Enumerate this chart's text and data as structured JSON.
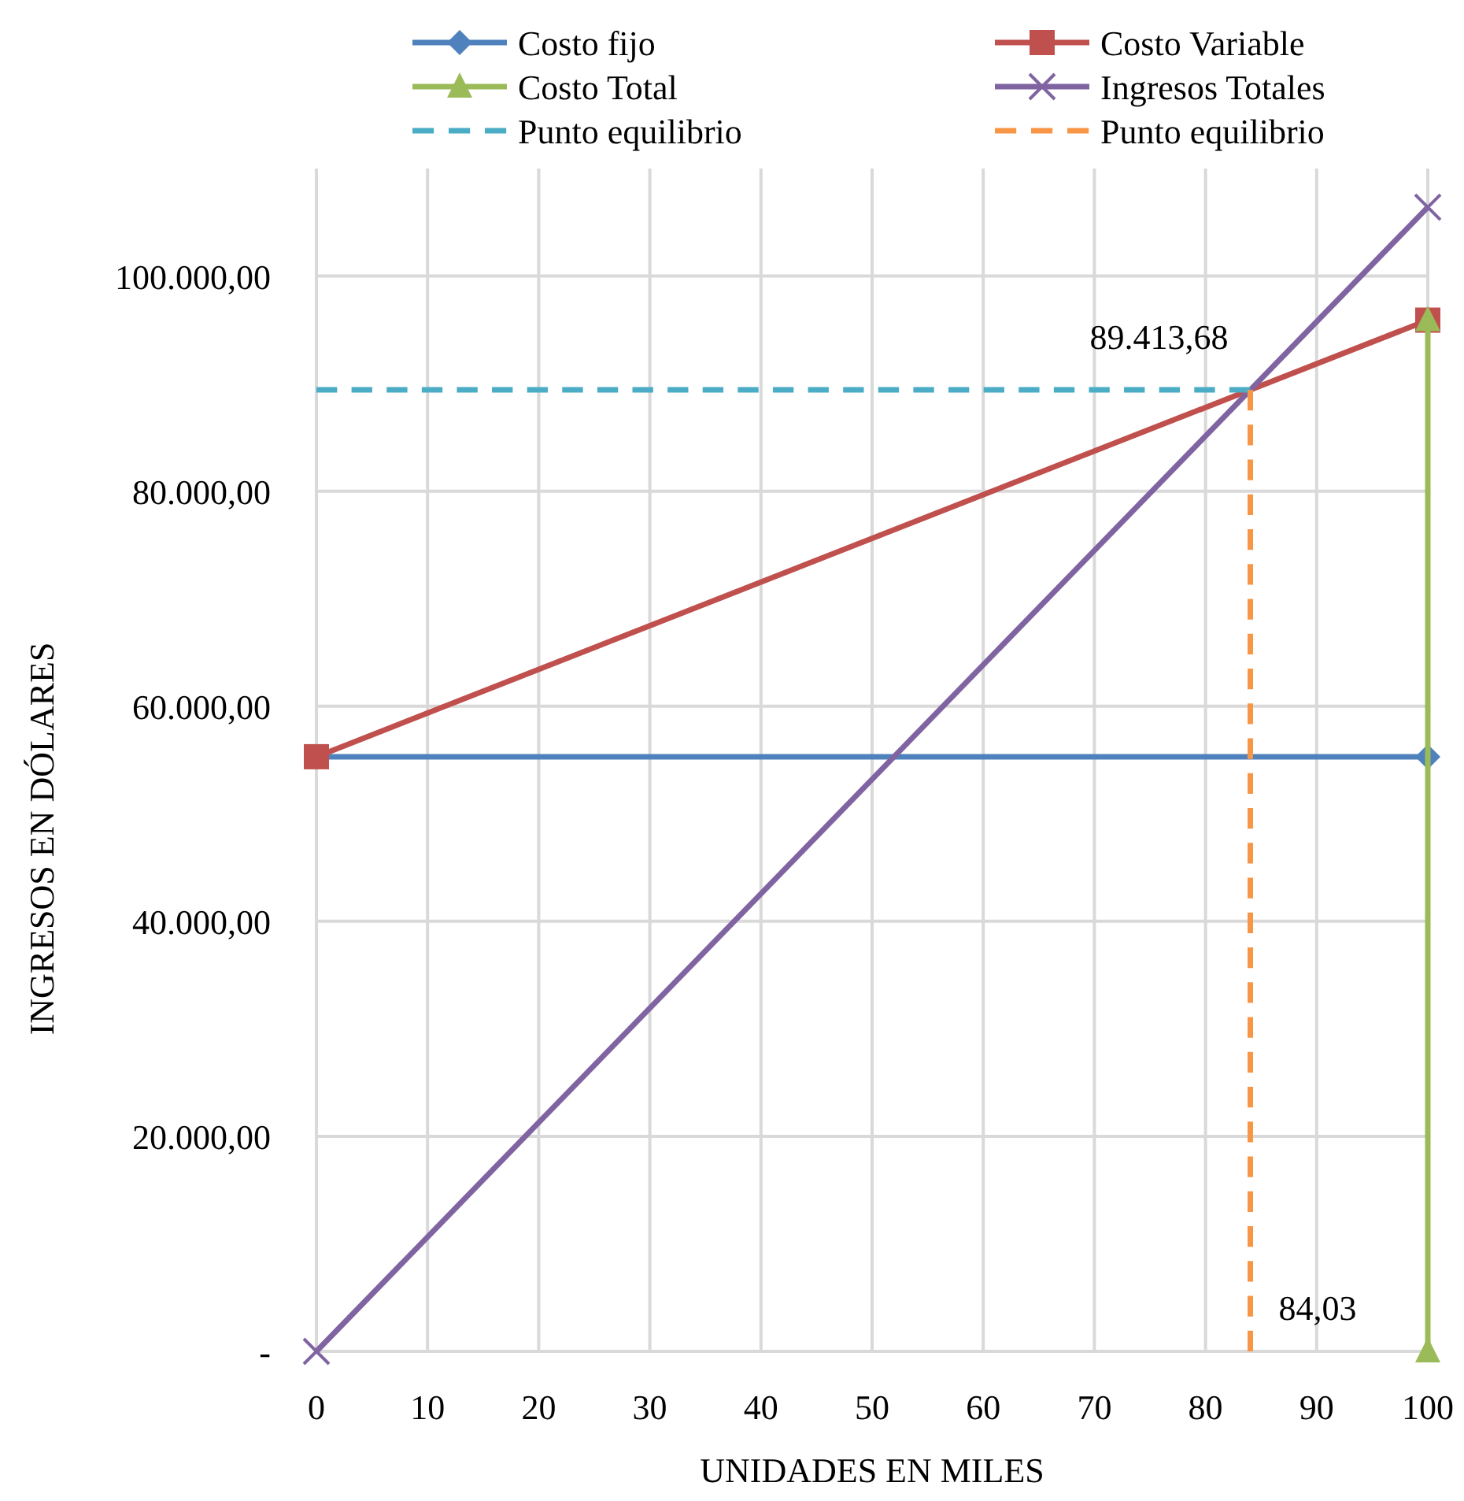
{
  "chart_data": {
    "type": "line",
    "xlabel": "UNIDADES EN MILES",
    "ylabel": "INGRESOS EN DÓLARES",
    "xlim": [
      0,
      100
    ],
    "xticks": [
      0,
      10,
      20,
      30,
      40,
      50,
      60,
      70,
      80,
      90,
      100
    ],
    "ylim": [
      0,
      110000
    ],
    "yticks": [
      {
        "value": 0,
        "label": "-"
      },
      {
        "value": 20000,
        "label": "20.000,00"
      },
      {
        "value": 40000,
        "label": "40.000,00"
      },
      {
        "value": 60000,
        "label": "60.000,00"
      },
      {
        "value": 80000,
        "label": "80.000,00"
      },
      {
        "value": 100000,
        "label": "100.000,00"
      }
    ],
    "grid": true,
    "legend": "top",
    "series": [
      {
        "name": "Costo fijo",
        "color": "#4f81bd",
        "x": [
          0,
          100
        ],
        "values": [
          55300,
          55300
        ],
        "marker": "diamond",
        "line_style": "solid"
      },
      {
        "name": "Costo Variable",
        "color": "#c0504d",
        "x": [
          0,
          100
        ],
        "values": [
          55300,
          95900
        ],
        "marker": "square",
        "line_style": "solid"
      },
      {
        "name": "Costo Total",
        "color": "#9bbb59",
        "x": [
          100,
          100
        ],
        "values": [
          0,
          95900
        ],
        "marker": "triangle",
        "line_style": "solid"
      },
      {
        "name": "Ingresos Totales",
        "color": "#8064a2",
        "x": [
          0,
          100
        ],
        "values": [
          0,
          106400
        ],
        "marker": "cross",
        "line_style": "solid"
      },
      {
        "name": "Punto equilibrio",
        "color": "#4bacc6",
        "x": [
          0,
          84.03
        ],
        "values": [
          89413.68,
          89413.68
        ],
        "marker": "none",
        "line_style": "dashed"
      },
      {
        "name": "Punto equilibrio",
        "color": "#f79646",
        "x": [
          84.03,
          84.03
        ],
        "values": [
          89413.68,
          0
        ],
        "marker": "none",
        "line_style": "dashed"
      }
    ],
    "annotations": [
      {
        "text": "89.413,68",
        "x": 84.03,
        "y": 89413.68
      },
      {
        "text": "84,03",
        "x": 84.03,
        "y": 0
      }
    ]
  }
}
